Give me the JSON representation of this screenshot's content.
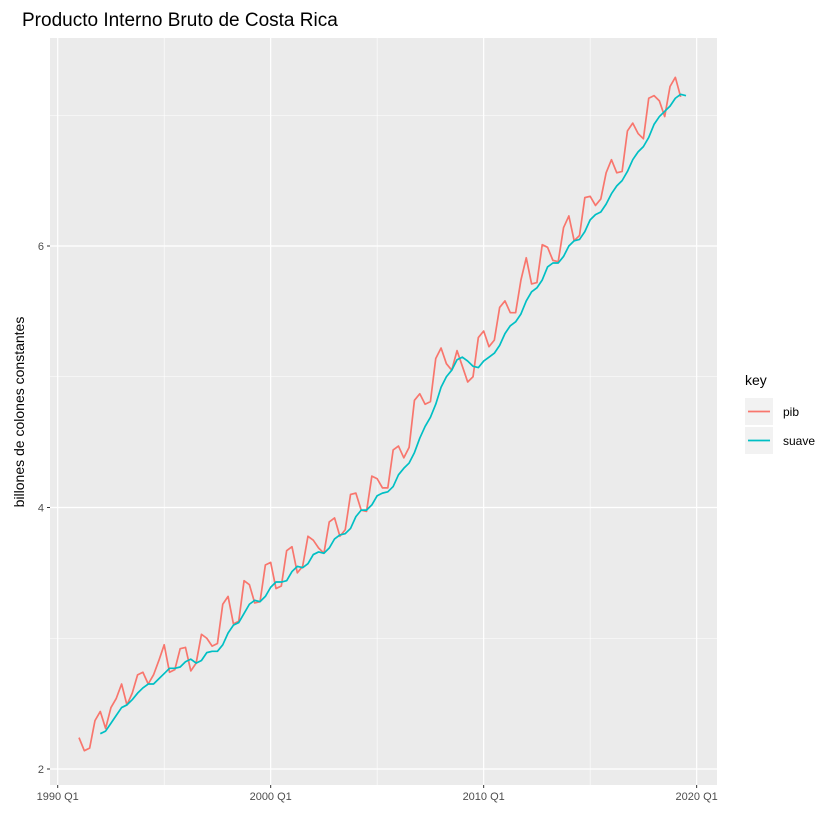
{
  "chart_data": {
    "type": "line",
    "title": "Producto Interno Bruto de Costa Rica",
    "xlabel": "",
    "ylabel": "billones de colones constantes",
    "xlim": [
      1991.0,
      2019.5
    ],
    "ylim": [
      2.0,
      7.22
    ],
    "x_ticks": [
      {
        "value": 1990.0,
        "label": "1990 Q1"
      },
      {
        "value": 2000.0,
        "label": "2000 Q1"
      },
      {
        "value": 2010.0,
        "label": "2010 Q1"
      },
      {
        "value": 2020.0,
        "label": "2020 Q1"
      }
    ],
    "y_ticks": [
      {
        "value": 2,
        "label": "2"
      },
      {
        "value": 4,
        "label": "4"
      },
      {
        "value": 6,
        "label": "6"
      }
    ],
    "grid": true,
    "legend_title": "key",
    "legend_position": "right",
    "series": [
      {
        "name": "pib",
        "color": "#F8766D",
        "x_start": 1991.0,
        "x_step": 0.25,
        "values": [
          2.24,
          2.14,
          2.16,
          2.37,
          2.44,
          2.31,
          2.47,
          2.54,
          2.65,
          2.49,
          2.58,
          2.72,
          2.74,
          2.65,
          2.72,
          2.83,
          2.95,
          2.74,
          2.76,
          2.92,
          2.93,
          2.75,
          2.81,
          3.03,
          3.0,
          2.94,
          2.96,
          3.26,
          3.32,
          3.11,
          3.13,
          3.44,
          3.41,
          3.27,
          3.28,
          3.56,
          3.58,
          3.38,
          3.4,
          3.67,
          3.7,
          3.5,
          3.55,
          3.78,
          3.75,
          3.69,
          3.65,
          3.89,
          3.92,
          3.78,
          3.83,
          4.1,
          4.11,
          3.98,
          3.97,
          4.24,
          4.22,
          4.15,
          4.15,
          4.44,
          4.47,
          4.38,
          4.46,
          4.82,
          4.87,
          4.79,
          4.81,
          5.14,
          5.22,
          5.1,
          5.05,
          5.2,
          5.08,
          4.96,
          5.0,
          5.3,
          5.35,
          5.23,
          5.28,
          5.53,
          5.58,
          5.49,
          5.49,
          5.74,
          5.91,
          5.71,
          5.72,
          6.01,
          5.99,
          5.89,
          5.88,
          6.14,
          6.23,
          6.04,
          6.08,
          6.37,
          6.38,
          6.31,
          6.36,
          6.56,
          6.66,
          6.56,
          6.57,
          6.88,
          6.94,
          6.86,
          6.82,
          7.13,
          7.15,
          7.11,
          6.99,
          7.22,
          7.29,
          7.14
        ]
      },
      {
        "name": "suave",
        "color": "#00BFC4",
        "x_start": 1992.0,
        "x_step": 0.25,
        "values": [
          2.27,
          2.29,
          2.35,
          2.41,
          2.47,
          2.49,
          2.53,
          2.58,
          2.62,
          2.65,
          2.65,
          2.69,
          2.73,
          2.77,
          2.77,
          2.78,
          2.82,
          2.84,
          2.81,
          2.83,
          2.89,
          2.9,
          2.9,
          2.95,
          3.04,
          3.1,
          3.12,
          3.19,
          3.26,
          3.29,
          3.28,
          3.32,
          3.39,
          3.43,
          3.43,
          3.44,
          3.51,
          3.55,
          3.54,
          3.57,
          3.64,
          3.66,
          3.65,
          3.69,
          3.76,
          3.79,
          3.8,
          3.84,
          3.93,
          3.98,
          3.98,
          4.02,
          4.09,
          4.11,
          4.12,
          4.16,
          4.25,
          4.3,
          4.34,
          4.42,
          4.53,
          4.62,
          4.69,
          4.79,
          4.92,
          5.0,
          5.05,
          5.13,
          5.15,
          5.12,
          5.08,
          5.07,
          5.12,
          5.15,
          5.18,
          5.24,
          5.33,
          5.39,
          5.42,
          5.48,
          5.58,
          5.65,
          5.68,
          5.74,
          5.84,
          5.87,
          5.87,
          5.92,
          6.0,
          6.04,
          6.05,
          6.11,
          6.2,
          6.24,
          6.26,
          6.32,
          6.4,
          6.46,
          6.5,
          6.57,
          6.66,
          6.72,
          6.76,
          6.83,
          6.93,
          6.99,
          7.03,
          7.07,
          7.13,
          7.16,
          7.15
        ]
      }
    ]
  }
}
